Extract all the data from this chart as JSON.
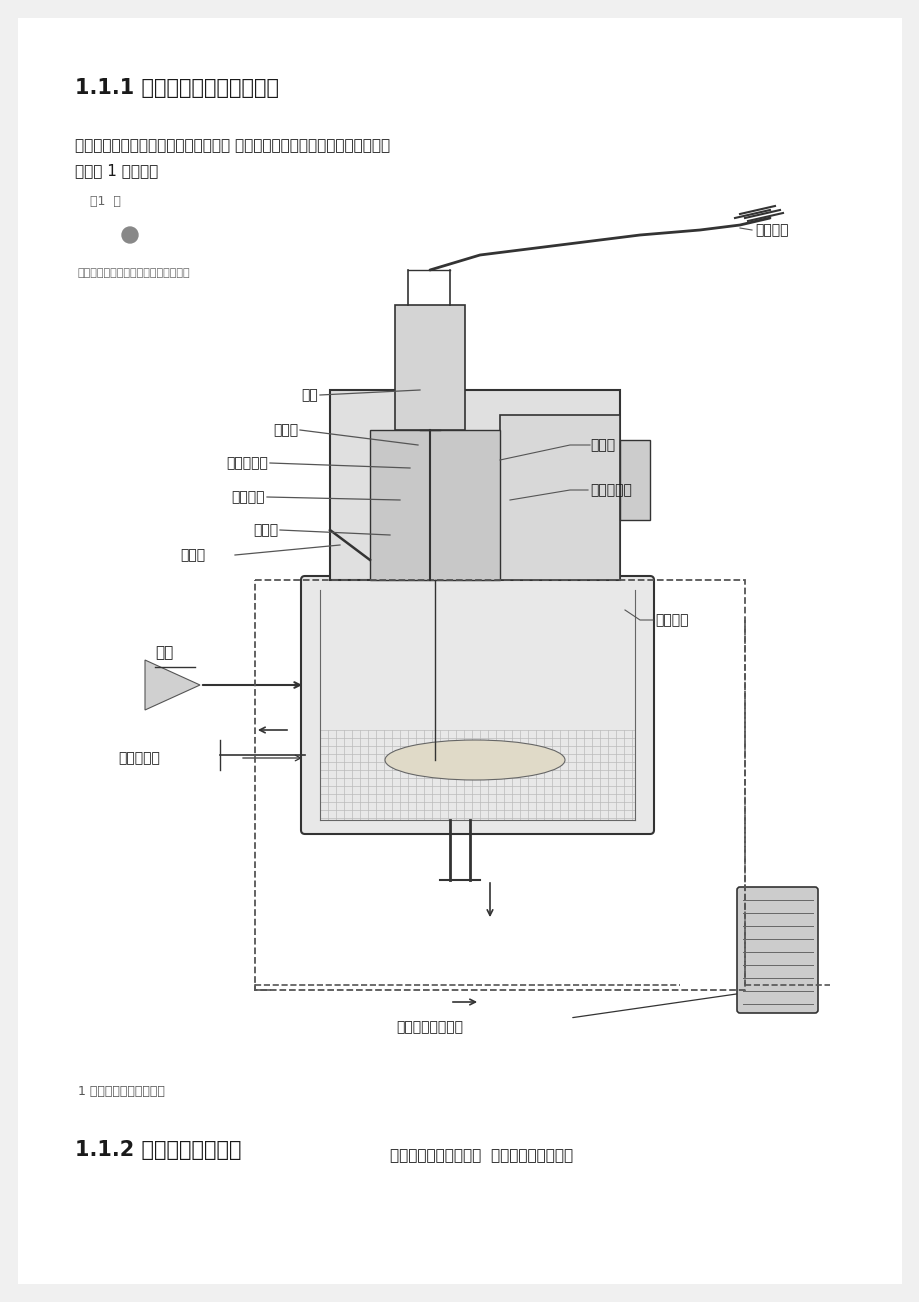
{
  "bg_color": "#f0f0f0",
  "page_bg": "#ffffff",
  "title1": "1.1.1 柱塞式化油器的基本结构",
  "para1": "摩托车化油器主要零件包括、进油阀、 溢油管、泡沫管、喷管等，其具体的结",
  "para1b": "构如图 1 所示：构",
  "page_label": "页1  第",
  "small_header": "摩托车化油器的优缺点和未来发展方向",
  "fig_caption": "1 柱塞式化油器结构图图",
  "title2_bold": "1.1.2 化油器的工作原理",
  "title2_normal": "怠速包括了启动工况、  摩托车化油器是根据",
  "left_labels": [
    "柱塞",
    "主喷管",
    "主空气量孔",
    "主泡沫管",
    "主量孔",
    "阻风门",
    "空气",
    "主空气量孔"
  ],
  "right_labels": [
    "油门拉线",
    "主油针",
    "低速出油口",
    "怠速量孔"
  ],
  "bottom_label": "怠速空气调节螺钉",
  "font_color": "#1a1a1a",
  "line_color": "#333333",
  "gray_light": "#d8d8d8",
  "gray_mid": "#aaaaaa",
  "gray_dark": "#666666"
}
